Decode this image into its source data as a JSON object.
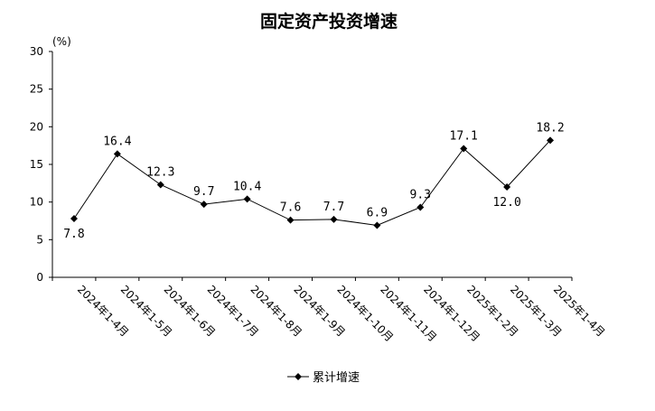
{
  "chart_data": {
    "type": "line",
    "title": "固定资产投资增速",
    "unit_label": "(%)",
    "categories": [
      "2024年1-4月",
      "2024年1-5月",
      "2024年1-6月",
      "2024年1-7月",
      "2024年1-8月",
      "2024年1-9月",
      "2024年1-10月",
      "2024年1-11月",
      "2024年1-12月",
      "2025年1-2月",
      "2025年1-3月",
      "2025年1-4月"
    ],
    "series": [
      {
        "name": "累计增速",
        "values": [
          7.8,
          16.4,
          12.3,
          9.7,
          10.4,
          7.6,
          7.7,
          6.9,
          9.3,
          17.1,
          12.0,
          18.2
        ],
        "value_labels": [
          "7.8",
          "16.4",
          "12.3",
          "9.7",
          "10.4",
          "7.6",
          "7.7",
          "6.9",
          "9.3",
          "17.1",
          "12.0",
          "18.2"
        ],
        "color": "#000000",
        "marker": "diamond"
      }
    ],
    "ylim": [
      0,
      30
    ],
    "yticks": [
      "0",
      "5",
      "10",
      "15",
      "20",
      "25",
      "30"
    ],
    "grid": false,
    "legend": "bottom-center"
  }
}
